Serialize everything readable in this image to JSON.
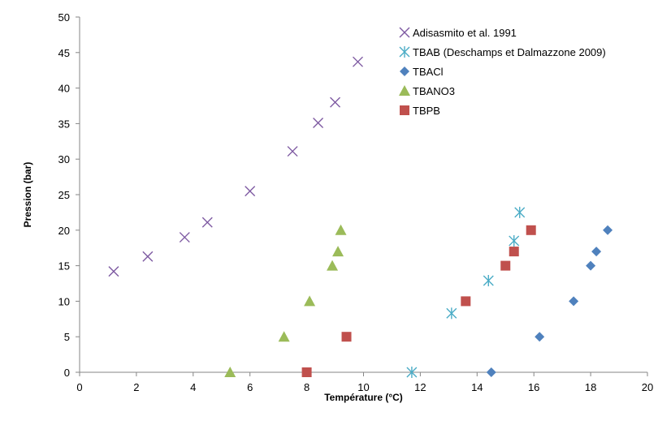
{
  "chart_data": {
    "type": "scatter",
    "xlabel": "Température (°C)",
    "ylabel": "Pression (bar)",
    "xlim": [
      0,
      20
    ],
    "ylim": [
      0,
      50
    ],
    "xticks": [
      0,
      2,
      4,
      6,
      8,
      10,
      12,
      14,
      16,
      18,
      20
    ],
    "yticks": [
      0,
      5,
      10,
      15,
      20,
      25,
      30,
      35,
      40,
      45,
      50
    ],
    "grid": false,
    "legend_position": "top-right",
    "series": [
      {
        "name": "Adisasmito et al. 1991",
        "marker": "x",
        "color": "#7E5AA2",
        "points": [
          [
            1.2,
            14.2
          ],
          [
            2.4,
            16.3
          ],
          [
            3.7,
            19.0
          ],
          [
            4.5,
            21.1
          ],
          [
            6.0,
            25.5
          ],
          [
            7.5,
            31.1
          ],
          [
            8.4,
            35.1
          ],
          [
            9.0,
            38.0
          ],
          [
            9.8,
            43.7
          ]
        ]
      },
      {
        "name": "TBAB (Deschamps et Dalmazzone 2009)",
        "marker": "asterisk",
        "color": "#4BACC6",
        "points": [
          [
            11.7,
            0.0
          ],
          [
            13.1,
            8.3
          ],
          [
            14.4,
            12.9
          ],
          [
            15.3,
            18.5
          ],
          [
            15.5,
            22.5
          ]
        ]
      },
      {
        "name": "TBACl",
        "marker": "diamond",
        "color": "#4F81BD",
        "points": [
          [
            14.5,
            0.0
          ],
          [
            16.2,
            5.0
          ],
          [
            17.4,
            10.0
          ],
          [
            18.0,
            15.0
          ],
          [
            18.2,
            17.0
          ],
          [
            18.6,
            20.0
          ]
        ]
      },
      {
        "name": "TBANO3",
        "marker": "triangle",
        "color": "#9BBB59",
        "points": [
          [
            5.3,
            0.0
          ],
          [
            7.2,
            5.0
          ],
          [
            8.1,
            10.0
          ],
          [
            8.9,
            15.0
          ],
          [
            9.1,
            17.0
          ],
          [
            9.2,
            20.0
          ]
        ]
      },
      {
        "name": "TBPB",
        "marker": "square",
        "color": "#C0504D",
        "points": [
          [
            8.0,
            0.0
          ],
          [
            9.4,
            5.0
          ],
          [
            13.6,
            10.0
          ],
          [
            15.0,
            15.0
          ],
          [
            15.3,
            17.0
          ],
          [
            15.9,
            20.0
          ]
        ]
      }
    ]
  }
}
